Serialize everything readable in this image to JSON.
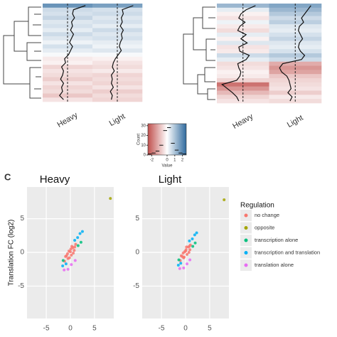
{
  "panel_label": "C",
  "chart_data": [
    {
      "type": "heatmap",
      "series": [
        {
          "name": "Heavy",
          "values": [
            1.8,
            0.6,
            0.5,
            0.7,
            0.4,
            0.5,
            0.3,
            0.6,
            0.4,
            0.2,
            0.5,
            0.3,
            0.1,
            -0.3,
            -0.2,
            -0.6,
            -0.4,
            -0.5,
            -0.7,
            -0.4,
            -0.6,
            -0.5,
            -0.8,
            -0.4
          ]
        },
        {
          "name": "Light",
          "values": [
            1.6,
            0.5,
            0.6,
            0.4,
            0.5,
            0.3,
            0.6,
            0.4,
            0.5,
            0.3,
            0.2,
            0.4,
            0.1,
            -0.2,
            -0.4,
            -0.5,
            -0.3,
            -0.6,
            -0.5,
            -0.6,
            -0.4,
            -0.7,
            -0.5,
            -0.6
          ]
        }
      ]
    },
    {
      "type": "heatmap",
      "series": [
        {
          "name": "Heavy",
          "values": [
            1.2,
            0.3,
            -0.2,
            -0.4,
            0.2,
            -0.3,
            -0.5,
            0.3,
            -0.2,
            0.4,
            -0.4,
            -0.3,
            0.6,
            0.3,
            -0.5,
            -0.4,
            -0.2,
            -0.3,
            -0.6,
            -2,
            -1.5,
            -1,
            -0.6,
            -0.4
          ]
        },
        {
          "name": "Light",
          "values": [
            1.5,
            1.2,
            0.9,
            0.6,
            0.8,
            0.4,
            0.3,
            0.5,
            0.7,
            0.4,
            0.3,
            0.5,
            0.9,
            0.6,
            -1.2,
            -1.5,
            -1.3,
            -0.8,
            -0.6,
            -0.5,
            -0.4,
            -0.7,
            -0.3,
            -0.5
          ]
        }
      ]
    },
    {
      "type": "colorkey",
      "title": "Value",
      "ylabel": "Count",
      "low_color": "#c0504d",
      "mid_color": "#ffffff",
      "high_color": "#2f6a9e",
      "xlim": [
        -2.5,
        2.5
      ],
      "xticks": [
        -2,
        0,
        1,
        2
      ],
      "ylim": [
        0,
        32
      ],
      "yticks": [
        0,
        10,
        20,
        30
      ],
      "bins": [
        -2.5,
        -2,
        -1.5,
        -1,
        -0.5,
        0,
        0.5,
        1,
        1.5,
        2,
        2.5
      ],
      "counts": [
        1,
        2,
        4,
        10,
        25,
        28,
        12,
        5,
        2,
        1
      ]
    },
    {
      "type": "scatter",
      "title": "Heavy",
      "ylabel": "Translation FC (log2)",
      "legend_title": "Regulation",
      "xlim": [
        -9,
        9
      ],
      "ylim": [
        -9.8,
        9.7
      ],
      "xticks": [
        -5,
        0,
        5
      ],
      "yticks": [
        -5,
        0,
        5
      ],
      "grid": true,
      "series": [
        {
          "name": "no change",
          "color": "#f8766d",
          "x": [
            -1.2,
            -0.8,
            -0.5,
            -0.3,
            0,
            0.2,
            0.5,
            0.8,
            1.1,
            -0.6,
            0.3,
            0.6,
            -0.2,
            0.1,
            -1,
            0.9
          ],
          "values": [
            -1.3,
            -0.5,
            -0.9,
            0.2,
            0.1,
            -0.4,
            0.7,
            0.3,
            1.2,
            -0.2,
            0.9,
            -0.1,
            -0.8,
            0.5,
            -0.6,
            0.8
          ]
        },
        {
          "name": "opposite",
          "color": "#a3a500",
          "x": [
            8.3
          ],
          "values": [
            8
          ]
        },
        {
          "name": "transcription alone",
          "color": "#00bf7d",
          "x": [
            1.6,
            -1.5,
            2.2
          ],
          "values": [
            1,
            -1.2,
            1.5
          ]
        },
        {
          "name": "transcription and translation",
          "color": "#00b0f6",
          "x": [
            1.5,
            -1.6,
            2,
            0.9,
            -0.9,
            2.5
          ],
          "values": [
            2.2,
            -2,
            2.8,
            1.8,
            -1.7,
            3.1
          ]
        },
        {
          "name": "translation alone",
          "color": "#e76bf3",
          "x": [
            0.2,
            -0.5,
            1,
            -1.3
          ],
          "values": [
            -1.8,
            -2.5,
            -1.2,
            -2.6
          ]
        }
      ]
    },
    {
      "type": "scatter",
      "title": "Light",
      "xlim": [
        -9,
        9
      ],
      "ylim": [
        -9.8,
        9.7
      ],
      "xticks": [
        -5,
        0,
        5
      ],
      "yticks": [
        -5,
        0,
        5
      ],
      "grid": true,
      "series": [
        {
          "name": "no change",
          "color": "#f8766d",
          "x": [
            -1.1,
            -0.7,
            -0.4,
            -0.2,
            0,
            0.3,
            0.6,
            0.9,
            1,
            -0.5,
            0.2,
            0.7,
            -0.3,
            0.1,
            -0.9,
            0.8
          ],
          "values": [
            -1.2,
            -0.6,
            -0.8,
            0.1,
            0.2,
            -0.3,
            0.8,
            0.4,
            1.1,
            -0.1,
            0.8,
            0,
            -0.7,
            0.4,
            -0.5,
            0.9
          ]
        },
        {
          "name": "opposite",
          "color": "#a3a500",
          "x": [
            8
          ],
          "values": [
            7.8
          ]
        },
        {
          "name": "transcription alone",
          "color": "#00bf7d",
          "x": [
            1.5,
            -1.4,
            2
          ],
          "values": [
            0.9,
            -1.1,
            1.4
          ]
        },
        {
          "name": "transcription and translation",
          "color": "#00b0f6",
          "x": [
            1.4,
            -1.5,
            1.9,
            0.8,
            -1,
            2.3
          ],
          "values": [
            2,
            -1.9,
            2.6,
            1.7,
            -1.6,
            2.9
          ]
        },
        {
          "name": "translation alone",
          "color": "#e76bf3",
          "x": [
            0.3,
            -0.4,
            0.9,
            -1.2
          ],
          "values": [
            -1.7,
            -2.3,
            -1.1,
            -2.4
          ]
        }
      ]
    }
  ]
}
